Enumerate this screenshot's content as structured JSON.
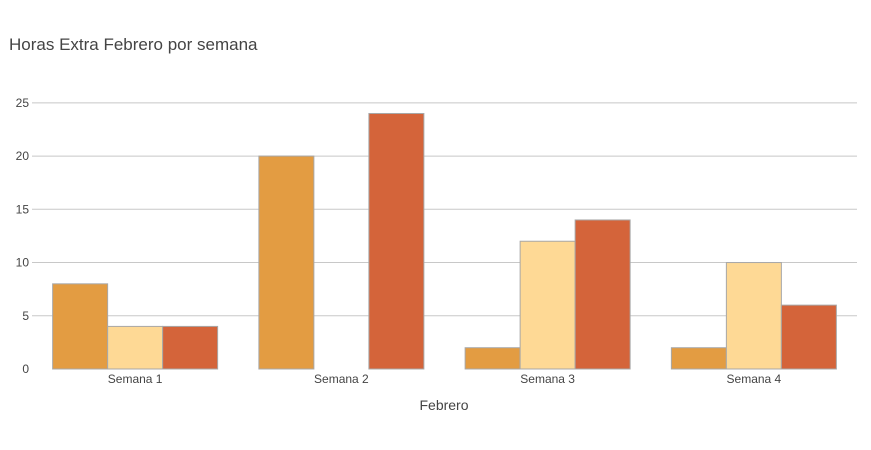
{
  "chart_data": {
    "type": "bar",
    "title": "Horas Extra Febrero por semana",
    "xlabel": "Febrero",
    "ylabel": "",
    "categories": [
      "Semana 1",
      "Semana 2",
      "Semana 3",
      "Semana 4"
    ],
    "series": [
      {
        "values": [
          8,
          20,
          2,
          2
        ],
        "color": "#e39c42"
      },
      {
        "values": [
          4,
          0,
          12,
          10
        ],
        "color": "#fed995"
      },
      {
        "values": [
          4,
          24,
          14,
          6
        ],
        "color": "#d4643a"
      }
    ],
    "ylim": [
      0,
      26.3
    ],
    "yticks": [
      0,
      5,
      10,
      15,
      20,
      25
    ],
    "grid": true,
    "legend": "none",
    "colors": {
      "grid": "#c8c8c8",
      "bar_outline": "#a8a8a8",
      "text": "#444444"
    }
  }
}
